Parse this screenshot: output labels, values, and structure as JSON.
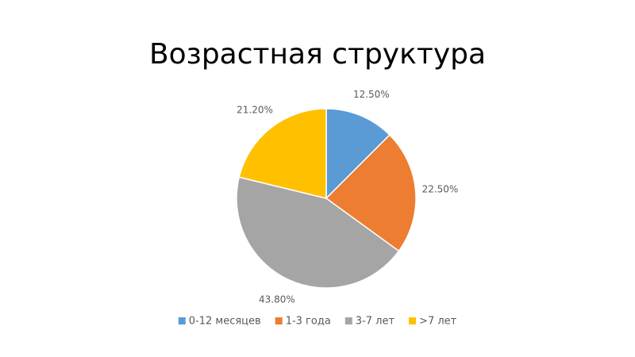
{
  "chart_data": {
    "type": "pie",
    "title": "Возрастная структура",
    "categories": [
      "0-12 месяцев",
      "1-3 года",
      "3-7 лет",
      ">7 лет"
    ],
    "values": [
      12.5,
      22.5,
      43.8,
      21.2
    ],
    "value_labels": [
      "12.50%",
      "22.50%",
      "43.80%",
      "21.20%"
    ],
    "colors": [
      "#5b9bd5",
      "#ed7d31",
      "#a5a5a5",
      "#ffc000"
    ],
    "legend": "bottom"
  }
}
